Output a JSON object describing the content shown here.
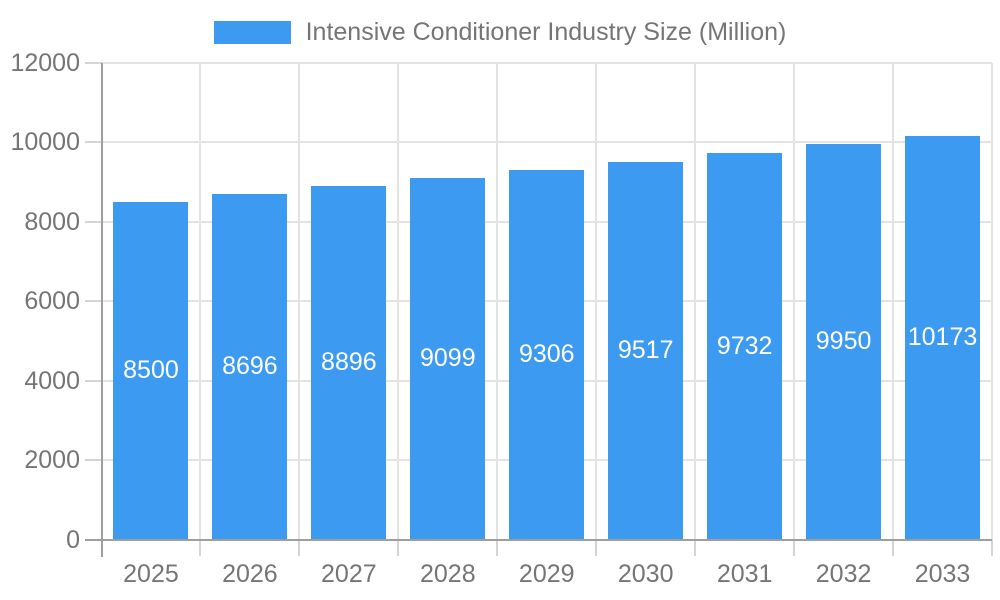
{
  "legend": {
    "label": "Intensive Conditioner Industry Size (Million)"
  },
  "colors": {
    "bar": "#3C9AF0",
    "bar_label": "#FFFFFF",
    "axis": "#9E9E9E",
    "grid": "#E3E3E3",
    "tick": "#D4D4D4",
    "text": "#757575",
    "background": "#FFFFFF"
  },
  "chart_data": {
    "type": "bar",
    "title": "Intensive Conditioner Industry Size (Million)",
    "categories": [
      "2025",
      "2026",
      "2027",
      "2028",
      "2029",
      "2030",
      "2031",
      "2032",
      "2033"
    ],
    "values": [
      8500,
      8696,
      8896,
      9099,
      9306,
      9517,
      9732,
      9950,
      10173
    ],
    "series": [
      {
        "name": "Intensive Conditioner Industry Size (Million)",
        "values": [
          8500,
          8696,
          8896,
          9099,
          9306,
          9517,
          9732,
          9950,
          10173
        ]
      }
    ],
    "xlabel": "",
    "ylabel": "",
    "ylim": [
      0,
      12000
    ],
    "yticks": [
      0,
      2000,
      4000,
      6000,
      8000,
      10000,
      12000
    ],
    "grid": true,
    "legend_position": "top",
    "bar_labels_inside": true
  }
}
